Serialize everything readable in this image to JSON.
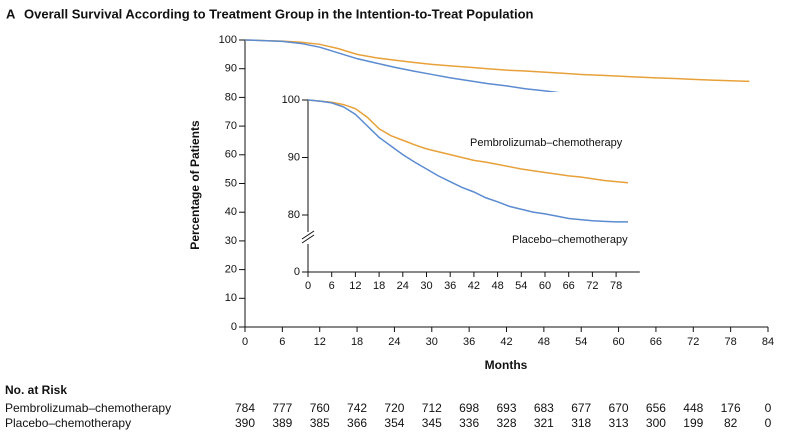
{
  "chart_data": {
    "type": "line",
    "panel_label": "A",
    "title": "Overall Survival According to Treatment Group in the Intention-to-Treat Population",
    "x_label": "Months",
    "y_label": "Percentage of Patients",
    "x": [
      0,
      3,
      6,
      9,
      12,
      15,
      18,
      21,
      24,
      27,
      30,
      33,
      36,
      39,
      42,
      45,
      48,
      51,
      54,
      57,
      60,
      63,
      66,
      69,
      72,
      75,
      78,
      81
    ],
    "series": [
      {
        "name": "Pembrolizumab–chemotherapy",
        "color": "#e8a13a",
        "values": [
          100,
          99.8,
          99.6,
          99.2,
          98.5,
          97,
          95,
          93.8,
          93,
          92.2,
          91.5,
          91,
          90.5,
          90,
          89.5,
          89.2,
          88.8,
          88.4,
          88,
          87.7,
          87.4,
          87.1,
          86.8,
          86.6,
          86.3,
          86,
          85.8,
          85.6
        ]
      },
      {
        "name": "Placebo–chemotherapy",
        "color": "#5b8bd0",
        "values": [
          100,
          99.8,
          99.5,
          98.8,
          97.5,
          95.5,
          93.5,
          92,
          90.5,
          89.2,
          88,
          86.8,
          85.8,
          84.8,
          84,
          83,
          82.3,
          81.5,
          81,
          80.5,
          80.2,
          79.8,
          79.4,
          79.2,
          79,
          78.9,
          78.8,
          78.8
        ]
      }
    ],
    "xlim": [
      0,
      84
    ],
    "xticks": [
      0,
      6,
      12,
      18,
      24,
      30,
      36,
      42,
      48,
      54,
      60,
      66,
      72,
      78,
      84
    ],
    "ylim": [
      0,
      100
    ],
    "yticks": [
      0,
      10,
      20,
      30,
      40,
      50,
      60,
      70,
      80,
      90,
      100
    ],
    "inset": {
      "xticks": [
        0,
        6,
        12,
        18,
        24,
        30,
        36,
        42,
        48,
        54,
        60,
        66,
        72,
        78
      ],
      "yticks": [
        0,
        80,
        90,
        100
      ]
    },
    "risk_table": {
      "title": "No. at Risk",
      "rows": [
        {
          "name": "Pembrolizumab–chemotherapy",
          "values": [
            784,
            777,
            760,
            742,
            720,
            712,
            698,
            693,
            683,
            677,
            670,
            656,
            448,
            176,
            0
          ]
        },
        {
          "name": "Placebo–chemotherapy",
          "values": [
            390,
            389,
            385,
            366,
            354,
            345,
            336,
            328,
            321,
            318,
            313,
            300,
            199,
            82,
            0
          ]
        }
      ]
    }
  }
}
